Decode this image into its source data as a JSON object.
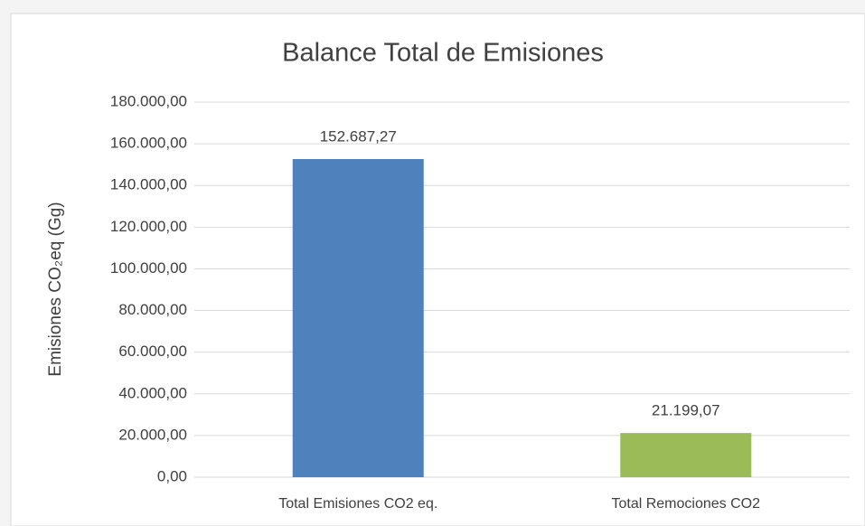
{
  "chart_data": {
    "type": "bar",
    "title": "Balance Total de Emisiones",
    "y_label": "Emisiones CO₂eq (Gg)",
    "categories": [
      "Total Emisiones CO2 eq.",
      "Total Remociones CO2"
    ],
    "values": [
      152687.27,
      21199.07
    ],
    "value_labels": [
      "152.687,27",
      "21.199,07"
    ],
    "colors": [
      "#4f81bd",
      "#9bbb59"
    ],
    "ylim": [
      0,
      180000
    ],
    "yticks": [
      {
        "value": 0,
        "label": "0,00"
      },
      {
        "value": 20000,
        "label": "20.000,00"
      },
      {
        "value": 40000,
        "label": "40.000,00"
      },
      {
        "value": 60000,
        "label": "60.000,00"
      },
      {
        "value": 80000,
        "label": "80.000,00"
      },
      {
        "value": 100000,
        "label": "100.000,00"
      },
      {
        "value": 120000,
        "label": "120.000,00"
      },
      {
        "value": 140000,
        "label": "140.000,00"
      },
      {
        "value": 160000,
        "label": "160.000,00"
      },
      {
        "value": 180000,
        "label": "180.000,00"
      }
    ],
    "grid": true
  }
}
